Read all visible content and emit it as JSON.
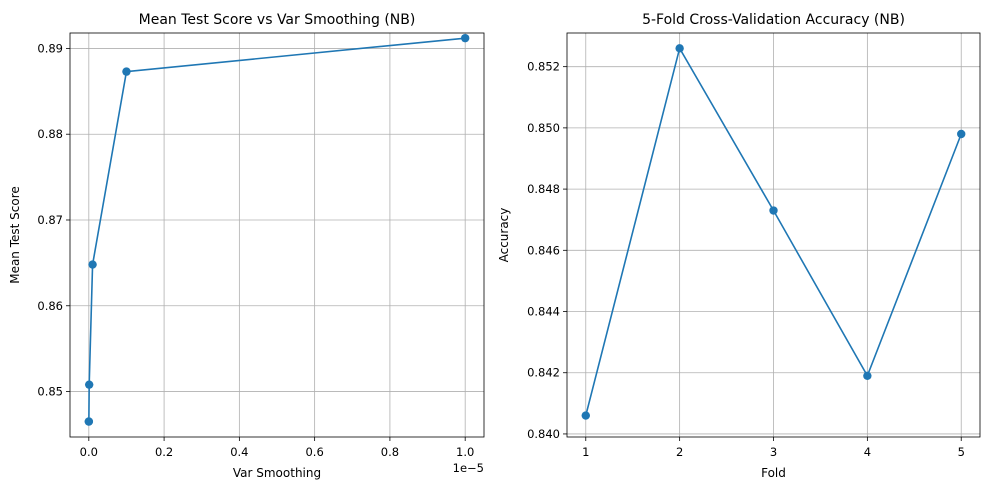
{
  "chart_data": [
    {
      "type": "line",
      "title": "Mean Test Score vs Var Smoothing (NB)",
      "xlabel": "Var Smoothing",
      "ylabel": "Mean Test Score",
      "x_offset_label": "1e−5",
      "x_scale_factor": 1e-05,
      "xlim": [
        -0.05,
        1.05
      ],
      "ylim": [
        0.8447,
        0.8918
      ],
      "xticks": [
        0.0,
        0.2,
        0.4,
        0.6,
        0.8,
        1.0
      ],
      "xtick_labels": [
        "0.0",
        "0.2",
        "0.4",
        "0.6",
        "0.8",
        "1.0"
      ],
      "yticks": [
        0.85,
        0.86,
        0.87,
        0.88,
        0.89
      ],
      "ytick_labels": [
        "0.85",
        "0.86",
        "0.87",
        "0.88",
        "0.89"
      ],
      "grid": true,
      "series": [
        {
          "color": "#1f77b4",
          "marker": "circle",
          "x": [
            0.0,
            0.0001,
            0.001,
            0.01,
            0.1,
            1.0
          ],
          "y": [
            0.8465,
            0.8465,
            0.8508,
            0.8648,
            0.8873,
            0.8912
          ]
        }
      ]
    },
    {
      "type": "line",
      "title": "5-Fold Cross-Validation Accuracy (NB)",
      "xlabel": "Fold",
      "ylabel": "Accuracy",
      "xlim": [
        0.8,
        5.2
      ],
      "ylim": [
        0.8399,
        0.8531
      ],
      "xticks": [
        1,
        2,
        3,
        4,
        5
      ],
      "xtick_labels": [
        "1",
        "2",
        "3",
        "4",
        "5"
      ],
      "yticks": [
        0.84,
        0.842,
        0.844,
        0.846,
        0.848,
        0.85,
        0.852
      ],
      "ytick_labels": [
        "0.840",
        "0.842",
        "0.844",
        "0.846",
        "0.848",
        "0.850",
        "0.852"
      ],
      "grid": true,
      "series": [
        {
          "color": "#1f77b4",
          "marker": "circle",
          "x": [
            1,
            2,
            3,
            4,
            5
          ],
          "y": [
            0.8406,
            0.8526,
            0.8473,
            0.8419,
            0.8498
          ]
        }
      ]
    }
  ]
}
